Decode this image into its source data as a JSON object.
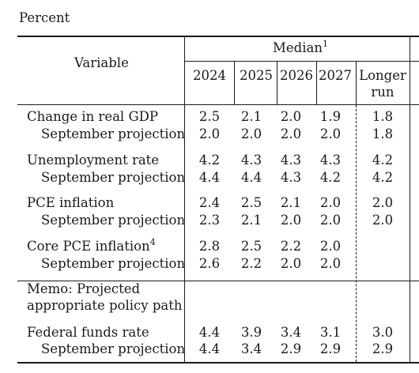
{
  "unit_label": "Percent",
  "header": {
    "variable": "Variable",
    "median": "Median",
    "median_note": "1",
    "years": [
      "2024",
      "2025",
      "2026",
      "2027"
    ],
    "longer_run_line1": "Longer",
    "longer_run_line2": "run"
  },
  "groups": [
    {
      "label": "Change in real GDP",
      "note": "",
      "values": [
        "2.5",
        "2.1",
        "2.0",
        "1.9"
      ],
      "longer_run": "1.8",
      "sub_label": "September projection",
      "sub_values": [
        "2.0",
        "2.0",
        "2.0",
        "2.0"
      ],
      "sub_longer_run": "1.8"
    },
    {
      "label": "Unemployment rate",
      "note": "",
      "values": [
        "4.2",
        "4.3",
        "4.3",
        "4.3"
      ],
      "longer_run": "4.2",
      "sub_label": "September projection",
      "sub_values": [
        "4.4",
        "4.4",
        "4.3",
        "4.2"
      ],
      "sub_longer_run": "4.2"
    },
    {
      "label": "PCE inflation",
      "note": "",
      "values": [
        "2.4",
        "2.5",
        "2.1",
        "2.0"
      ],
      "longer_run": "2.0",
      "sub_label": "September projection",
      "sub_values": [
        "2.3",
        "2.1",
        "2.0",
        "2.0"
      ],
      "sub_longer_run": "2.0"
    },
    {
      "label": "Core PCE inflation",
      "note": "4",
      "values": [
        "2.8",
        "2.5",
        "2.2",
        "2.0"
      ],
      "longer_run": "",
      "sub_label": "September projection",
      "sub_values": [
        "2.6",
        "2.2",
        "2.0",
        "2.0"
      ],
      "sub_longer_run": ""
    }
  ],
  "memo": {
    "line1": "Memo: Projected",
    "line2": "appropriate policy path",
    "label": "Federal funds rate",
    "values": [
      "4.4",
      "3.9",
      "3.4",
      "3.1"
    ],
    "longer_run": "3.0",
    "sub_label": "September projection",
    "sub_values": [
      "4.4",
      "3.4",
      "2.9",
      "2.9"
    ],
    "sub_longer_run": "2.9"
  }
}
